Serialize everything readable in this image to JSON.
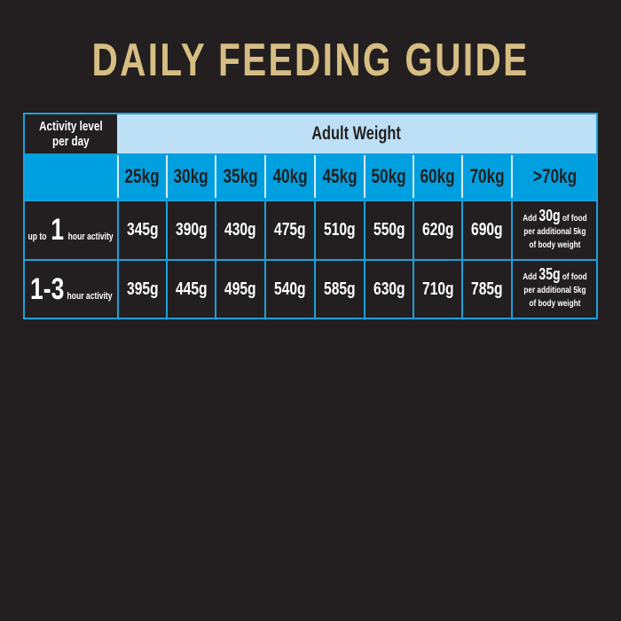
{
  "title": "DAILY FEEDING GUIDE",
  "table": {
    "activity_header_line1": "Activity level",
    "activity_header_line2": "per day",
    "weight_header": "Adult Weight",
    "weights": [
      "25kg",
      "30kg",
      "35kg",
      "40kg",
      "45kg",
      "50kg",
      "60kg",
      "70kg",
      ">70kg"
    ],
    "rows": [
      {
        "prefix": "up to",
        "number": "1",
        "suffix": "hour activity",
        "values": [
          "345g",
          "390g",
          "430g",
          "475g",
          "510g",
          "550g",
          "620g",
          "690g"
        ],
        "note": {
          "pre": "Add",
          "amount": "30g",
          "post": "of food",
          "line2": "per additional 5kg",
          "line3": "of body weight"
        }
      },
      {
        "prefix": "",
        "number": "1-3",
        "suffix": "hour activity",
        "values": [
          "395g",
          "445g",
          "495g",
          "540g",
          "585g",
          "630g",
          "710g",
          "785g"
        ],
        "note": {
          "pre": "Add",
          "amount": "35g",
          "post": "of food",
          "line2": "per additional 5kg",
          "line3": "of body weight"
        }
      }
    ]
  },
  "colors": {
    "title": "#d6bd82",
    "accent_blue": "#00a0e0",
    "light_blue": "#bde0f6",
    "background": "#231f20"
  }
}
